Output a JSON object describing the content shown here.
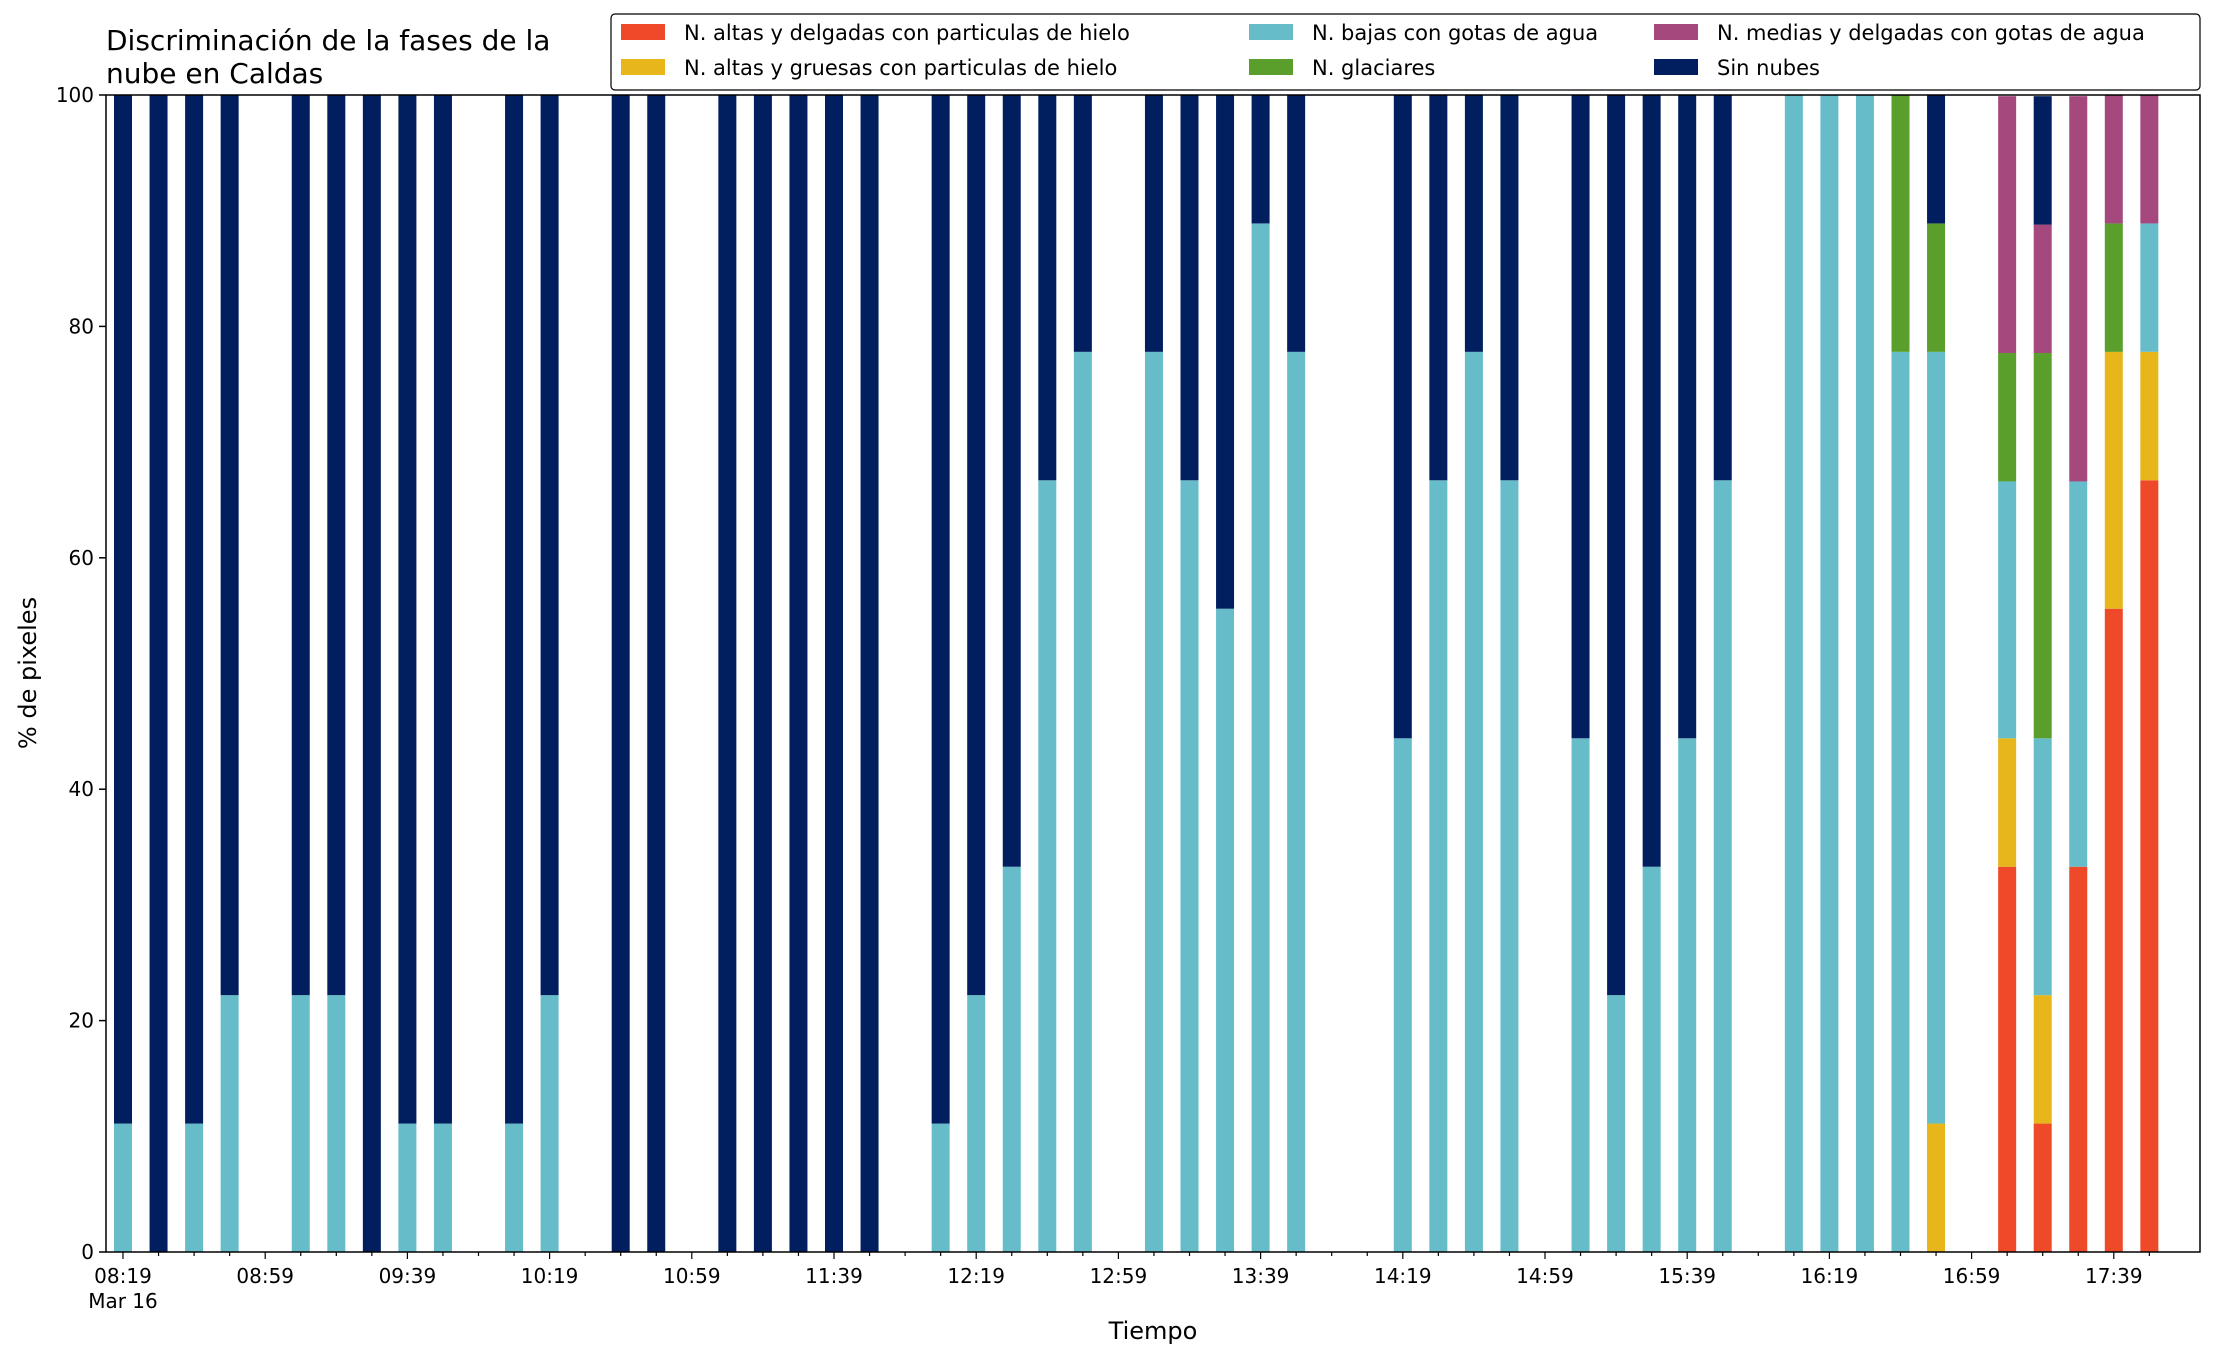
{
  "chart_data": {
    "type": "bar",
    "stacked": true,
    "title_lines": [
      "Discriminación de la fases de la",
      "nube en Caldas"
    ],
    "xlabel": "Tiempo",
    "ylabel": "% de pixeles",
    "ylim": [
      0,
      100
    ],
    "yticks": [
      0,
      20,
      40,
      60,
      80,
      100
    ],
    "x_major_ticks": [
      {
        "slot": 0,
        "label": "08:19",
        "sublabel": "Mar 16"
      },
      {
        "slot": 4,
        "label": "08:59"
      },
      {
        "slot": 8,
        "label": "09:39"
      },
      {
        "slot": 12,
        "label": "10:19"
      },
      {
        "slot": 16,
        "label": "10:59"
      },
      {
        "slot": 20,
        "label": "11:39"
      },
      {
        "slot": 24,
        "label": "12:19"
      },
      {
        "slot": 28,
        "label": "12:59"
      },
      {
        "slot": 32,
        "label": "13:39"
      },
      {
        "slot": 36,
        "label": "14:19"
      },
      {
        "slot": 40,
        "label": "14:59"
      },
      {
        "slot": 44,
        "label": "15:39"
      },
      {
        "slot": 48,
        "label": "16:19"
      },
      {
        "slot": 52,
        "label": "16:59"
      },
      {
        "slot": 56,
        "label": "17:39"
      }
    ],
    "n_slots": 58,
    "grid": false,
    "legend": {
      "placement": "top-right",
      "columns": 3,
      "entries": [
        {
          "name": "N. altas y delgadas con particulas de hielo",
          "color": "#ee4a2a"
        },
        {
          "name": "N. altas y gruesas con particulas de hielo",
          "color": "#e6b61a"
        },
        {
          "name": "N. bajas con gotas de agua",
          "color": "#66bdc9"
        },
        {
          "name": "N. glaciares",
          "color": "#5a9e2c"
        },
        {
          "name": "N. medias y delgadas con gotas de agua",
          "color": "#a4487e"
        },
        {
          "name": "Sin nubes",
          "color": "#011f5e"
        }
      ]
    },
    "stack_order": [
      "N. altas y delgadas con particulas de hielo",
      "N. altas y gruesas con particulas de hielo",
      "N. bajas con gotas de agua",
      "N. glaciares",
      "N. medias y delgadas con gotas de agua",
      "Sin nubes"
    ],
    "bars": [
      {
        "slot": 0,
        "values": [
          0,
          0,
          11.1,
          0,
          0,
          88.9
        ]
      },
      {
        "slot": 1,
        "values": [
          0,
          0,
          0,
          0,
          0,
          100
        ]
      },
      {
        "slot": 2,
        "values": [
          0,
          0,
          11.1,
          0,
          0,
          88.9
        ]
      },
      {
        "slot": 3,
        "values": [
          0,
          0,
          22.2,
          0,
          0,
          77.8
        ]
      },
      {
        "slot": 5,
        "values": [
          0,
          0,
          22.2,
          0,
          0,
          77.8
        ]
      },
      {
        "slot": 6,
        "values": [
          0,
          0,
          22.2,
          0,
          0,
          77.8
        ]
      },
      {
        "slot": 7,
        "values": [
          0,
          0,
          0,
          0,
          0,
          100
        ]
      },
      {
        "slot": 8,
        "values": [
          0,
          0,
          11.1,
          0,
          0,
          88.9
        ]
      },
      {
        "slot": 9,
        "values": [
          0,
          0,
          11.1,
          0,
          0,
          88.9
        ]
      },
      {
        "slot": 11,
        "values": [
          0,
          0,
          11.1,
          0,
          0,
          88.9
        ]
      },
      {
        "slot": 12,
        "values": [
          0,
          0,
          22.2,
          0,
          0,
          77.8
        ]
      },
      {
        "slot": 14,
        "values": [
          0,
          0,
          0,
          0,
          0,
          100
        ]
      },
      {
        "slot": 15,
        "values": [
          0,
          0,
          0,
          0,
          0,
          100
        ]
      },
      {
        "slot": 17,
        "values": [
          0,
          0,
          0,
          0,
          0,
          100
        ]
      },
      {
        "slot": 18,
        "values": [
          0,
          0,
          0,
          0,
          0,
          100
        ]
      },
      {
        "slot": 19,
        "values": [
          0,
          0,
          0,
          0,
          0,
          100
        ]
      },
      {
        "slot": 20,
        "values": [
          0,
          0,
          0,
          0,
          0,
          100
        ]
      },
      {
        "slot": 21,
        "values": [
          0,
          0,
          0,
          0,
          0,
          100
        ]
      },
      {
        "slot": 23,
        "values": [
          0,
          0,
          11.1,
          0,
          0,
          88.9
        ]
      },
      {
        "slot": 24,
        "values": [
          0,
          0,
          22.2,
          0,
          0,
          77.8
        ]
      },
      {
        "slot": 25,
        "values": [
          0,
          0,
          33.3,
          0,
          0,
          66.7
        ]
      },
      {
        "slot": 26,
        "values": [
          0,
          0,
          66.7,
          0,
          0,
          33.3
        ]
      },
      {
        "slot": 27,
        "values": [
          0,
          0,
          77.8,
          0,
          0,
          22.2
        ]
      },
      {
        "slot": 29,
        "values": [
          0,
          0,
          77.8,
          0,
          0,
          22.2
        ]
      },
      {
        "slot": 30,
        "values": [
          0,
          0,
          66.7,
          0,
          0,
          33.3
        ]
      },
      {
        "slot": 31,
        "values": [
          0,
          0,
          55.6,
          0,
          0,
          44.4
        ]
      },
      {
        "slot": 32,
        "values": [
          0,
          0,
          88.9,
          0,
          0,
          11.1
        ]
      },
      {
        "slot": 33,
        "values": [
          0,
          0,
          77.8,
          0,
          0,
          22.2
        ]
      },
      {
        "slot": 36,
        "values": [
          0,
          0,
          44.4,
          0,
          0,
          55.6
        ]
      },
      {
        "slot": 37,
        "values": [
          0,
          0,
          66.7,
          0,
          0,
          33.3
        ]
      },
      {
        "slot": 38,
        "values": [
          0,
          0,
          77.8,
          0,
          0,
          22.2
        ]
      },
      {
        "slot": 39,
        "values": [
          0,
          0,
          66.7,
          0,
          0,
          33.3
        ]
      },
      {
        "slot": 41,
        "values": [
          0,
          0,
          44.4,
          0,
          0,
          55.6
        ]
      },
      {
        "slot": 42,
        "values": [
          0,
          0,
          22.2,
          0,
          0,
          77.8
        ]
      },
      {
        "slot": 43,
        "values": [
          0,
          0,
          33.3,
          0,
          0,
          66.7
        ]
      },
      {
        "slot": 44,
        "values": [
          0,
          0,
          44.4,
          0,
          0,
          55.6
        ]
      },
      {
        "slot": 45,
        "values": [
          0,
          0,
          66.7,
          0,
          0,
          33.3
        ]
      },
      {
        "slot": 47,
        "values": [
          0,
          0,
          100,
          0,
          0,
          0
        ]
      },
      {
        "slot": 48,
        "values": [
          0,
          0,
          100,
          0,
          0,
          0
        ]
      },
      {
        "slot": 49,
        "values": [
          0,
          0,
          100,
          0,
          0,
          0
        ]
      },
      {
        "slot": 50,
        "values": [
          0,
          0,
          77.8,
          22.2,
          0,
          0
        ]
      },
      {
        "slot": 51,
        "values": [
          0,
          11.1,
          66.7,
          11.1,
          0,
          11.1
        ]
      },
      {
        "slot": 53,
        "values": [
          33.3,
          11.1,
          22.2,
          11.1,
          22.2,
          0
        ]
      },
      {
        "slot": 54,
        "values": [
          11.1,
          11.1,
          22.2,
          33.3,
          11.1,
          11.1
        ]
      },
      {
        "slot": 55,
        "values": [
          33.3,
          0,
          33.3,
          0,
          33.3,
          0
        ]
      },
      {
        "slot": 56,
        "values": [
          55.6,
          22.2,
          0,
          11.1,
          11.1,
          0
        ]
      },
      {
        "slot": 57,
        "values": [
          66.7,
          11.1,
          11.1,
          0,
          11.1,
          0
        ]
      }
    ]
  }
}
